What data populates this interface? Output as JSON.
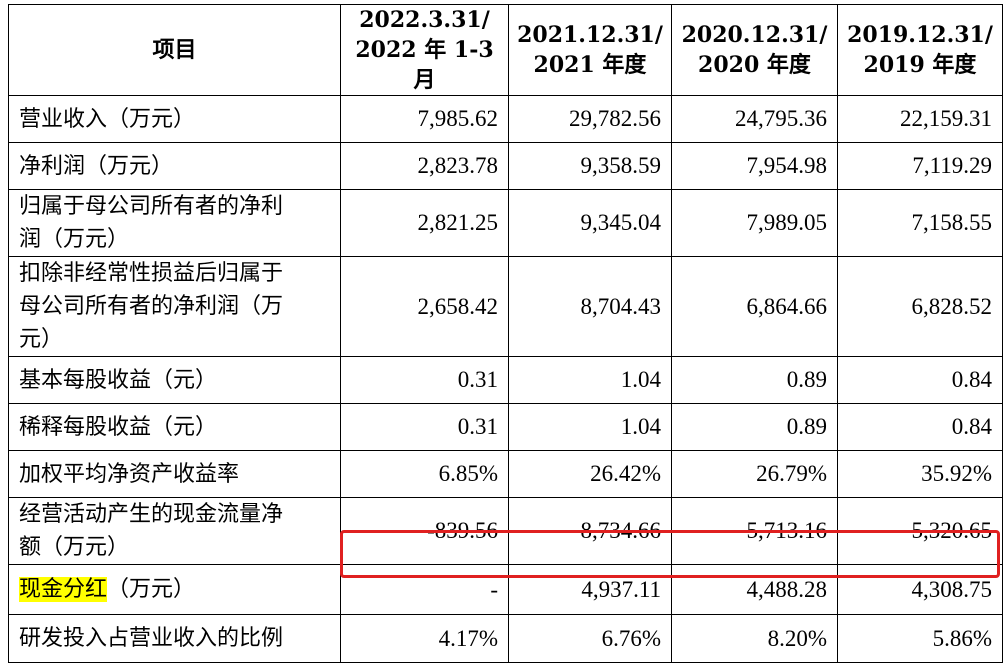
{
  "header": {
    "item": "项目",
    "col1_line1": "2022.3.31/",
    "col1_line2": "2022 年 1-3 月",
    "col2_line1": "2021.12.31/",
    "col2_line2": "2021 年度",
    "col3_line1": "2020.12.31/",
    "col3_line2": "2020 年度",
    "col4_line1": "2019.12.31/",
    "col4_line2": "2019 年度"
  },
  "rows": [
    {
      "label": "营业收入（万元）",
      "v1": "7,985.62",
      "v2": "29,782.56",
      "v3": "24,795.36",
      "v4": "22,159.31"
    },
    {
      "label": "净利润（万元）",
      "v1": "2,823.78",
      "v2": "9,358.59",
      "v3": "7,954.98",
      "v4": "7,119.29"
    },
    {
      "label_line1": "归属于母公司所有者的净利",
      "label_line2": "润（万元）",
      "v1": "2,821.25",
      "v2": "9,345.04",
      "v3": "7,989.05",
      "v4": "7,158.55"
    },
    {
      "label_line1": "扣除非经常性损益后归属于",
      "label_line2": "母公司所有者的净利润（万",
      "label_line3": "元）",
      "v1": "2,658.42",
      "v2": "8,704.43",
      "v3": "6,864.66",
      "v4": "6,828.52"
    },
    {
      "label": "基本每股收益（元）",
      "v1": "0.31",
      "v2": "1.04",
      "v3": "0.89",
      "v4": "0.84"
    },
    {
      "label": "稀释每股收益（元）",
      "v1": "0.31",
      "v2": "1.04",
      "v3": "0.89",
      "v4": "0.84"
    },
    {
      "label": "加权平均净资产收益率",
      "v1": "6.85%",
      "v2": "26.42%",
      "v3": "26.79%",
      "v4": "35.92%"
    },
    {
      "label_line1": "经营活动产生的现金流量净",
      "label_line2": "额（万元）",
      "v1": "-839.56",
      "v2": "8,734.66",
      "v3": "5,713.16",
      "v4": "5,320.65"
    },
    {
      "label_highlight": "现金分红",
      "label_rest": "（万元）",
      "v1": "-",
      "v2": "4,937.11",
      "v3": "4,488.28",
      "v4": "4,308.75"
    },
    {
      "label": "研发投入占营业收入的比例",
      "v1": "4.17%",
      "v2": "6.76%",
      "v3": "8.20%",
      "v4": "5.86%"
    }
  ],
  "colors": {
    "highlight": "#ffff00",
    "annotation_box": "#e02020"
  }
}
